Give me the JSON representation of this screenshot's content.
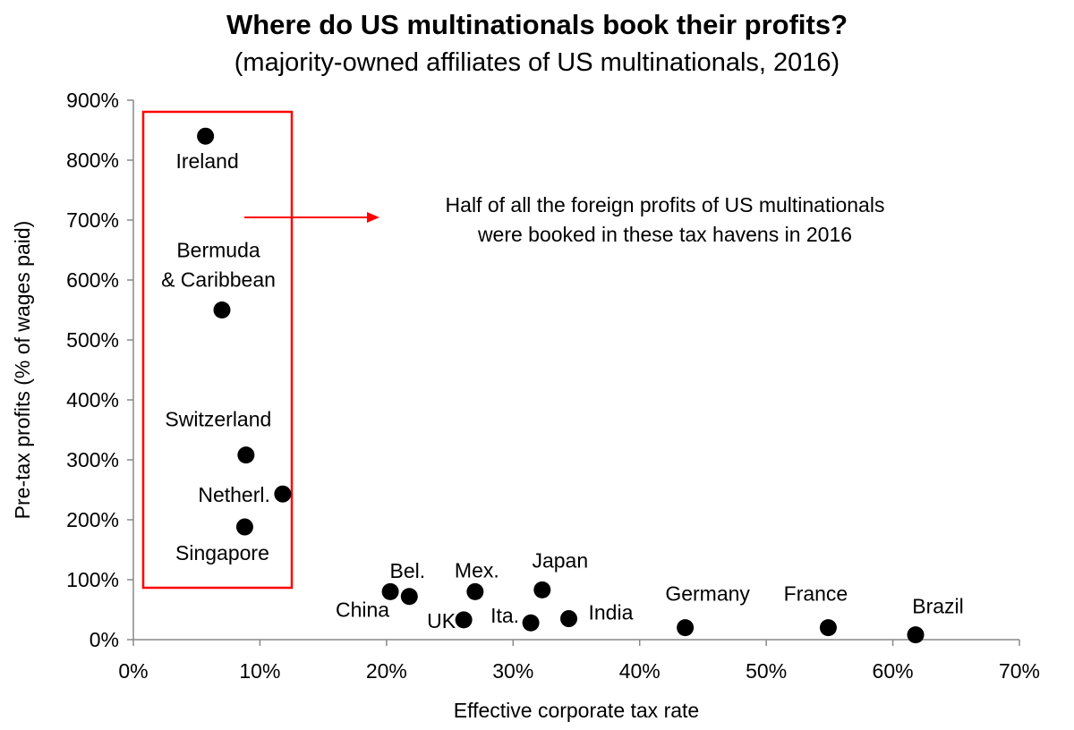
{
  "chart_data": {
    "type": "scatter",
    "title": "Where do US multinationals book their profits?",
    "subtitle": "(majority-owned affiliates of US multinationals, 2016)",
    "xlabel": "Effective corporate tax rate",
    "ylabel": "Pre-tax profits (% of wages paid)",
    "xlim": [
      0,
      70
    ],
    "ylim": [
      0,
      900
    ],
    "x_ticks": [
      "0%",
      "10%",
      "20%",
      "30%",
      "40%",
      "50%",
      "60%",
      "70%"
    ],
    "y_ticks": [
      "0%",
      "100%",
      "200%",
      "300%",
      "400%",
      "500%",
      "600%",
      "700%",
      "800%",
      "900%"
    ],
    "grid": false,
    "points": [
      {
        "label": "Ireland",
        "x": 5.7,
        "y": 840
      },
      {
        "label": "Bermuda & Caribbean",
        "x": 7.0,
        "y": 550
      },
      {
        "label": "Switzerland",
        "x": 8.9,
        "y": 308
      },
      {
        "label": "Netherl.",
        "x": 11.8,
        "y": 243
      },
      {
        "label": "Singapore",
        "x": 8.8,
        "y": 188
      },
      {
        "label": "China",
        "x": 20.3,
        "y": 80
      },
      {
        "label": "Bel.",
        "x": 21.8,
        "y": 72
      },
      {
        "label": "Mex.",
        "x": 27.0,
        "y": 80
      },
      {
        "label": "UK",
        "x": 26.1,
        "y": 33
      },
      {
        "label": "Japan",
        "x": 32.3,
        "y": 83
      },
      {
        "label": "Ita.",
        "x": 31.4,
        "y": 28
      },
      {
        "label": "India",
        "x": 34.4,
        "y": 35
      },
      {
        "label": "Germany",
        "x": 43.6,
        "y": 20
      },
      {
        "label": "France",
        "x": 54.9,
        "y": 20
      },
      {
        "label": "Brazil",
        "x": 61.8,
        "y": 8
      }
    ],
    "annotation": {
      "lines": [
        "Half of all the foreign profits of US multinationals",
        "were booked in these tax havens in 2016"
      ],
      "color": "#ff0000"
    },
    "highlight_box_color": "#ff0000",
    "point_color": "#000000"
  }
}
